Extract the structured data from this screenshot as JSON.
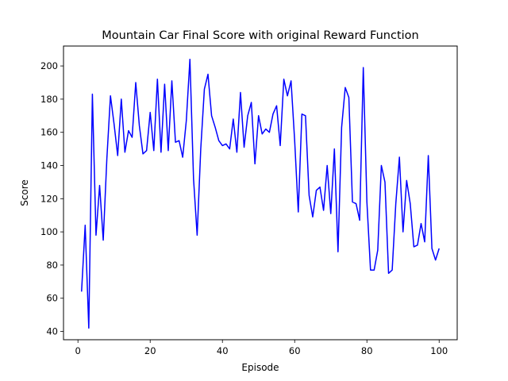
{
  "chart_data": {
    "type": "line",
    "title": "Mountain Car Final Score with original Reward Function",
    "xlabel": "Episode",
    "ylabel": "Score",
    "xlim": [
      -4,
      105
    ],
    "ylim": [
      35,
      212
    ],
    "xticks": [
      0,
      20,
      40,
      60,
      80,
      100
    ],
    "yticks": [
      40,
      60,
      80,
      100,
      120,
      140,
      160,
      180,
      200
    ],
    "grid": false,
    "legend": "none",
    "series": [
      {
        "color": "#0000ff",
        "x": [
          1,
          2,
          3,
          4,
          5,
          6,
          7,
          8,
          9,
          10,
          11,
          12,
          13,
          14,
          15,
          16,
          17,
          18,
          19,
          20,
          21,
          22,
          23,
          24,
          25,
          26,
          27,
          28,
          29,
          30,
          31,
          32,
          33,
          34,
          35,
          36,
          37,
          38,
          39,
          40,
          41,
          42,
          43,
          44,
          45,
          46,
          47,
          48,
          49,
          50,
          51,
          52,
          53,
          54,
          55,
          56,
          57,
          58,
          59,
          60,
          61,
          62,
          63,
          64,
          65,
          66,
          67,
          68,
          69,
          70,
          71,
          72,
          73,
          74,
          75,
          76,
          77,
          78,
          79,
          80,
          81,
          82,
          83,
          84,
          85,
          86,
          87,
          88,
          89,
          90,
          91,
          92,
          93,
          94,
          95,
          96,
          97,
          98,
          99,
          100
        ],
        "values": [
          64,
          104,
          42,
          183,
          98,
          128,
          95,
          144,
          182,
          165,
          146,
          180,
          148,
          161,
          157,
          190,
          164,
          147,
          149,
          172,
          149,
          192,
          148,
          189,
          149,
          191,
          154,
          155,
          145,
          167,
          204,
          132,
          98,
          150,
          186,
          195,
          170,
          163,
          155,
          152,
          153,
          150,
          168,
          148,
          184,
          151,
          170,
          178,
          141,
          170,
          159,
          162,
          160,
          171,
          176,
          152,
          192,
          182,
          191,
          155,
          112,
          171,
          170,
          122,
          109,
          125,
          127,
          113,
          140,
          111,
          150,
          88,
          163,
          187,
          181,
          118,
          117,
          107,
          199,
          118,
          77,
          77,
          89,
          140,
          130,
          75,
          77,
          117,
          145,
          100,
          131,
          117,
          91,
          92,
          105,
          94,
          146,
          90,
          83,
          90
        ]
      }
    ]
  }
}
